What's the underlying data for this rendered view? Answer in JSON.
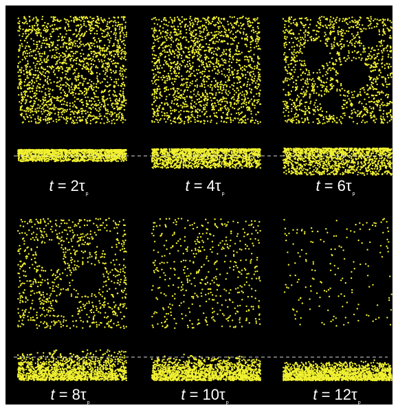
{
  "figure": {
    "background": "#000000",
    "particle_color": "#f0f030",
    "dashed_line_color": "#dddddd"
  },
  "panels": [
    {
      "t_var": "t",
      "eq": " = ",
      "coef": "2",
      "tau": "τ",
      "sub": "p",
      "plan_density": 1.0,
      "side_spread": "thin"
    },
    {
      "t_var": "t",
      "eq": " = ",
      "coef": "4",
      "tau": "τ",
      "sub": "p",
      "plan_density": 0.95,
      "side_spread": "slightly-spread"
    },
    {
      "t_var": "t",
      "eq": " = ",
      "coef": "6",
      "tau": "τ",
      "sub": "p",
      "plan_density": 0.82,
      "side_spread": "spread"
    },
    {
      "t_var": "t",
      "eq": " = ",
      "coef": "8",
      "tau": "τ",
      "sub": "p",
      "plan_density": 0.55,
      "side_spread": "deposited"
    },
    {
      "t_var": "t",
      "eq": " = ",
      "coef": "10",
      "tau": "τ",
      "sub": "p",
      "plan_density": 0.28,
      "side_spread": "deposited"
    },
    {
      "t_var": "t",
      "eq": " = ",
      "coef": "12",
      "tau": "τ",
      "sub": "p",
      "plan_density": 0.1,
      "side_spread": "deposited"
    }
  ]
}
